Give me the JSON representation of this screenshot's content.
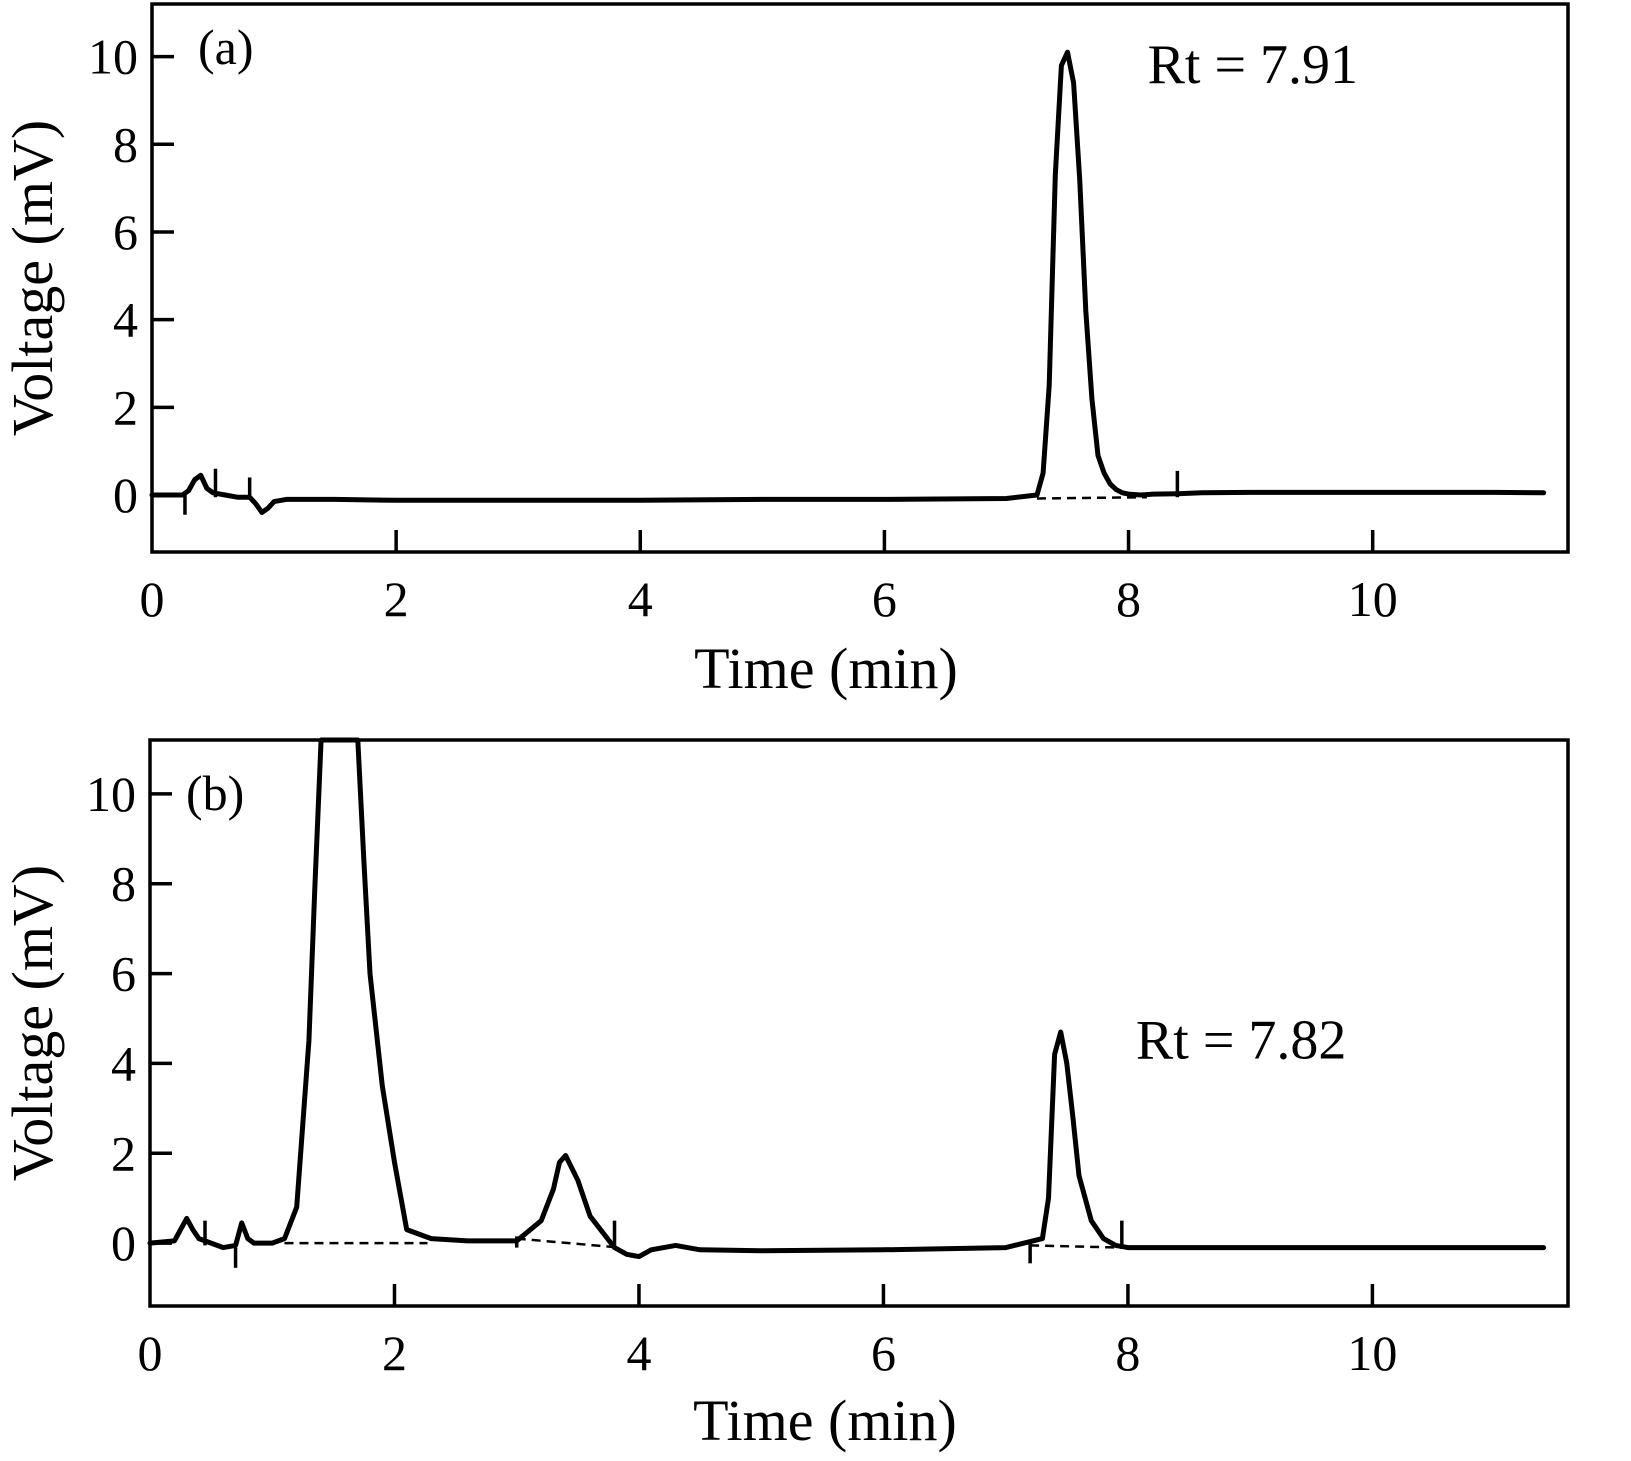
{
  "chart_data": [
    {
      "type": "line",
      "panel_label": "(a)",
      "xlabel": "Time (min)",
      "ylabel": "Voltage (mV)",
      "xlim": [
        0,
        11.6
      ],
      "ylim": [
        -1.3,
        11.2
      ],
      "xticks": [
        0,
        2,
        4,
        6,
        8,
        10
      ],
      "yticks": [
        0,
        2,
        4,
        6,
        8,
        10
      ],
      "annotation": {
        "text": "Rt = 7.91",
        "x": 7.91,
        "y": 9.9
      },
      "series": [
        {
          "x": [
            0,
            0.25,
            0.3,
            0.35,
            0.4,
            0.45,
            0.5,
            0.6,
            0.7,
            0.8,
            0.85,
            0.9,
            0.95,
            1.0,
            1.1,
            1.5,
            2,
            3,
            4,
            5,
            6,
            7,
            7.25,
            7.3,
            7.35,
            7.4,
            7.45,
            7.5,
            7.55,
            7.6,
            7.65,
            7.7,
            7.75,
            7.8,
            7.85,
            7.9,
            7.95,
            8.0,
            8.1,
            8.2,
            8.4,
            8.6,
            9,
            10,
            11,
            11.4
          ],
          "y": [
            0,
            0,
            0.1,
            0.35,
            0.45,
            0.15,
            0.05,
            0,
            -0.05,
            -0.05,
            -0.2,
            -0.4,
            -0.3,
            -0.15,
            -0.1,
            -0.1,
            -0.12,
            -0.12,
            -0.12,
            -0.1,
            -0.1,
            -0.08,
            0,
            0.5,
            2.5,
            7.3,
            9.8,
            10.1,
            9.4,
            7.2,
            4.2,
            2.2,
            0.9,
            0.5,
            0.25,
            0.12,
            0.05,
            0.02,
            0,
            0.02,
            0.03,
            0.05,
            0.06,
            0.06,
            0.06,
            0.05
          ]
        }
      ],
      "baselines": [
        {
          "x": [
            7.25,
            8.15
          ],
          "y": [
            -0.08,
            -0.05
          ]
        }
      ],
      "markers": [
        {
          "x": 0.27,
          "y1": -0.45,
          "y2": 0.05
        },
        {
          "x": 0.52,
          "y1": -0.05,
          "y2": 0.6
        },
        {
          "x": 0.8,
          "y1": -0.1,
          "y2": 0.4
        },
        {
          "x": 8.4,
          "y1": -0.05,
          "y2": 0.55
        }
      ]
    },
    {
      "type": "line",
      "panel_label": "(b)",
      "xlabel": "Time (min)",
      "ylabel": "Voltage (mV)",
      "xlim": [
        0,
        11.6
      ],
      "ylim": [
        -1.4,
        11.2
      ],
      "xticks": [
        0,
        2,
        4,
        6,
        8,
        10
      ],
      "yticks": [
        0,
        2,
        4,
        6,
        8,
        10
      ],
      "annotation": {
        "text": "Rt = 7.82",
        "x": 7.82,
        "y": 4.6
      },
      "series": [
        {
          "x": [
            0,
            0.2,
            0.25,
            0.3,
            0.35,
            0.4,
            0.5,
            0.6,
            0.7,
            0.75,
            0.8,
            0.85,
            0.9,
            1.0,
            1.1,
            1.2,
            1.3,
            1.35,
            1.4,
            1.7,
            1.75,
            1.8,
            1.9,
            2.0,
            2.1,
            2.3,
            2.6,
            3.0,
            3.2,
            3.3,
            3.35,
            3.4,
            3.5,
            3.6,
            3.8,
            3.9,
            4.0,
            4.1,
            4.3,
            4.5,
            5,
            6,
            7,
            7.3,
            7.35,
            7.4,
            7.45,
            7.5,
            7.55,
            7.6,
            7.7,
            7.8,
            7.9,
            8.0,
            9,
            10,
            11,
            11.4
          ],
          "y": [
            0,
            0.05,
            0.3,
            0.55,
            0.3,
            0.1,
            0,
            -0.1,
            -0.05,
            0.45,
            0.1,
            0,
            0,
            0,
            0.1,
            0.8,
            4.5,
            8,
            11.2,
            11.2,
            8.5,
            6,
            3.5,
            1.8,
            0.3,
            0.1,
            0.05,
            0.05,
            0.5,
            1.2,
            1.8,
            1.95,
            1.4,
            0.6,
            -0.1,
            -0.25,
            -0.3,
            -0.15,
            -0.05,
            -0.15,
            -0.17,
            -0.15,
            -0.1,
            0.1,
            1.0,
            4.2,
            4.7,
            4.0,
            2.8,
            1.5,
            0.5,
            0.1,
            -0.05,
            -0.1,
            -0.1,
            -0.1,
            -0.1,
            -0.1
          ]
        }
      ],
      "baselines": [
        {
          "x": [
            1.1,
            2.27
          ],
          "y": [
            0,
            0
          ]
        },
        {
          "x": [
            3.0,
            3.85
          ],
          "y": [
            0.1,
            -0.1
          ]
        },
        {
          "x": [
            7.2,
            7.95
          ],
          "y": [
            -0.05,
            -0.1
          ]
        }
      ],
      "markers": [
        {
          "x": 0.45,
          "y1": -0.05,
          "y2": 0.5
        },
        {
          "x": 0.7,
          "y1": -0.55,
          "y2": -0.1
        },
        {
          "x": 3.0,
          "y1": -0.1,
          "y2": 0.15
        },
        {
          "x": 3.8,
          "y1": -0.1,
          "y2": 0.5
        },
        {
          "x": 7.2,
          "y1": -0.45,
          "y2": 0
        },
        {
          "x": 7.95,
          "y1": -0.1,
          "y2": 0.5
        }
      ]
    }
  ]
}
